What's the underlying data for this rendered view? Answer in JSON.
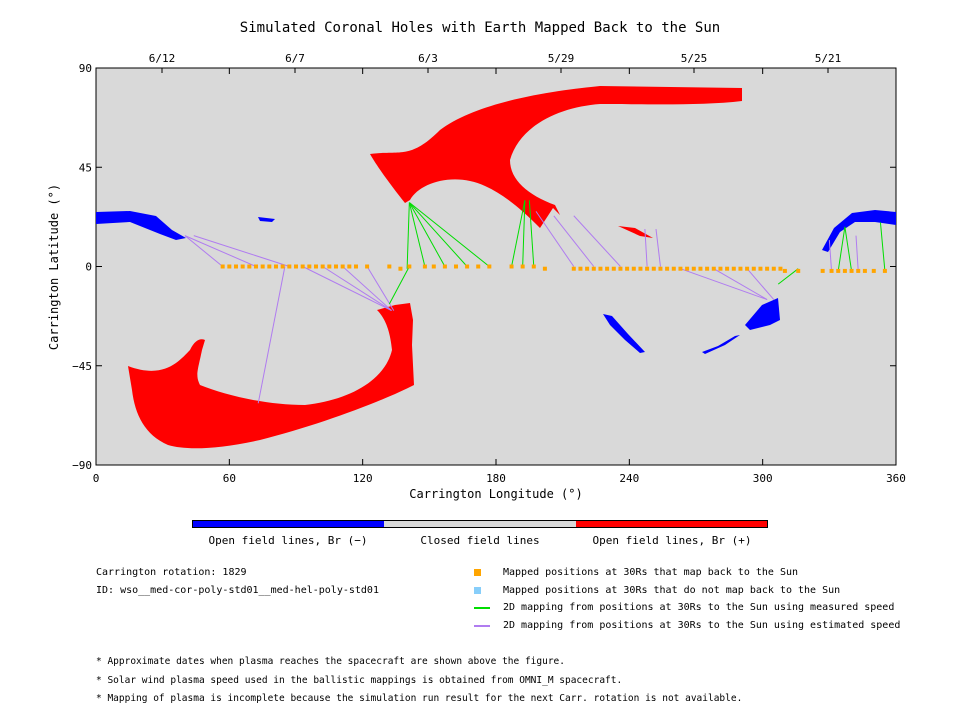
{
  "title": "Simulated Coronal Holes with Earth Mapped Back to the Sun",
  "chart_data": {
    "type": "scatter",
    "xlabel": "Carrington Longitude (°)",
    "ylabel": "Carrington Latitude (°)",
    "xlim": [
      0,
      360
    ],
    "ylim": [
      -90,
      90
    ],
    "x_ticks": [
      "0",
      "60",
      "120",
      "180",
      "240",
      "300",
      "360"
    ],
    "y_ticks": [
      "90",
      "45",
      "0",
      "−45",
      "−90"
    ],
    "top_date_ticks": [
      {
        "label": "6/12",
        "x": 24
      },
      {
        "label": "6/7",
        "x": 90
      },
      {
        "label": "6/3",
        "x": 150
      },
      {
        "label": "5/29",
        "x": 210
      },
      {
        "label": "5/25",
        "x": 270
      },
      {
        "label": "5/21",
        "x": 330
      }
    ],
    "mapped_points_lon": [
      57,
      60,
      63,
      66,
      69,
      72,
      75,
      78,
      81,
      84,
      87,
      90,
      93,
      96,
      99,
      102,
      105,
      108,
      111,
      114,
      117,
      122,
      132,
      137,
      141,
      148,
      152,
      157,
      162,
      167,
      172,
      177,
      187,
      192,
      197,
      202,
      215,
      218,
      221,
      224,
      227,
      230,
      233,
      236,
      239,
      242,
      245,
      248,
      251,
      254,
      257,
      260,
      263,
      266,
      269,
      272,
      275,
      278,
      281,
      284,
      287,
      290,
      293,
      296,
      299,
      302,
      305,
      308,
      310,
      316,
      327,
      331,
      334,
      337,
      340,
      343,
      346,
      350,
      355
    ],
    "mapped_points_lat": [
      0,
      0,
      0,
      0,
      0,
      0,
      0,
      0,
      0,
      0,
      0,
      0,
      0,
      0,
      0,
      0,
      0,
      0,
      0,
      0,
      0,
      0,
      0,
      -1,
      0,
      0,
      0,
      0,
      0,
      0,
      0,
      0,
      0,
      0,
      0,
      -1,
      -1,
      -1,
      -1,
      -1,
      -1,
      -1,
      -1,
      -1,
      -1,
      -1,
      -1,
      -1,
      -1,
      -1,
      -1,
      -1,
      -1,
      -1,
      -1,
      -1,
      -1,
      -1,
      -1,
      -1,
      -1,
      -1,
      -1,
      -1,
      -1,
      -1,
      -1,
      -1,
      -2,
      -2,
      -2,
      -2,
      -2,
      -2,
      -2,
      -2,
      -2,
      -2,
      -2
    ],
    "measured_speed_links": [
      {
        "from": [
          140,
          -1
        ],
        "to": [
          141,
          29
        ]
      },
      {
        "from": [
          148,
          0
        ],
        "to": [
          141,
          29
        ]
      },
      {
        "from": [
          157,
          0
        ],
        "to": [
          141,
          29
        ]
      },
      {
        "from": [
          167,
          0
        ],
        "to": [
          141,
          29
        ]
      },
      {
        "from": [
          177,
          0
        ],
        "to": [
          141,
          29
        ]
      },
      {
        "from": [
          187,
          0
        ],
        "to": [
          193,
          30
        ]
      },
      {
        "from": [
          192,
          0
        ],
        "to": [
          193,
          30
        ]
      },
      {
        "from": [
          197,
          0
        ],
        "to": [
          195,
          30
        ]
      },
      {
        "from": [
          141,
          0
        ],
        "to": [
          132,
          -17
        ]
      },
      {
        "from": [
          316,
          -1
        ],
        "to": [
          307,
          -8
        ]
      },
      {
        "from": [
          334,
          -2
        ],
        "to": [
          337,
          18
        ]
      },
      {
        "from": [
          340,
          -2
        ],
        "to": [
          337,
          18
        ]
      },
      {
        "from": [
          355,
          -2
        ],
        "to": [
          353,
          20
        ]
      }
    ],
    "estimated_speed_links": [
      {
        "from": [
          57,
          0
        ],
        "to": [
          40,
          14
        ]
      },
      {
        "from": [
          72,
          0
        ],
        "to": [
          40,
          14
        ]
      },
      {
        "from": [
          87,
          0
        ],
        "to": [
          44,
          14
        ]
      },
      {
        "from": [
          85,
          0
        ],
        "to": [
          73,
          -62
        ]
      },
      {
        "from": [
          93,
          0
        ],
        "to": [
          133,
          -20
        ]
      },
      {
        "from": [
          102,
          0
        ],
        "to": [
          133,
          -20
        ]
      },
      {
        "from": [
          111,
          0
        ],
        "to": [
          133,
          -20
        ]
      },
      {
        "from": [
          122,
          0
        ],
        "to": [
          134,
          -20
        ]
      },
      {
        "from": [
          215,
          0
        ],
        "to": [
          198,
          25
        ]
      },
      {
        "from": [
          224,
          0
        ],
        "to": [
          206,
          23
        ]
      },
      {
        "from": [
          236,
          0
        ],
        "to": [
          215,
          23
        ]
      },
      {
        "from": [
          248,
          0
        ],
        "to": [
          247,
          17
        ]
      },
      {
        "from": [
          254,
          0
        ],
        "to": [
          252,
          17
        ]
      },
      {
        "from": [
          263,
          -1
        ],
        "to": [
          302,
          -15
        ]
      },
      {
        "from": [
          278,
          -1
        ],
        "to": [
          302,
          -15
        ]
      },
      {
        "from": [
          293,
          -1
        ],
        "to": [
          305,
          -15
        ]
      },
      {
        "from": [
          331,
          -2
        ],
        "to": [
          330,
          12
        ]
      },
      {
        "from": [
          343,
          -2
        ],
        "to": [
          342,
          14
        ]
      }
    ]
  },
  "colorbar": {
    "colors": [
      "#0000ff",
      "#d9d9d9",
      "#ff0000"
    ],
    "labels": [
      "Open field lines, Br (−)",
      "Closed field lines",
      "Open field lines, Br (+)"
    ]
  },
  "info": {
    "rotation": "Carrington rotation: 1829",
    "id": "ID: wso__med-cor-poly-std01__med-hel-poly-std01"
  },
  "legend": [
    {
      "label": "Mapped positions at 30Rs that map back to the Sun",
      "color": "#ffa500",
      "kind": "square"
    },
    {
      "label": "Mapped positions at 30Rs that do not map back to the Sun",
      "color": "#87cefa",
      "kind": "square"
    },
    {
      "label": "2D mapping from positions at 30Rs to the Sun using measured speed",
      "color": "#00dd00",
      "kind": "line"
    },
    {
      "label": "2D mapping from positions at 30Rs to the Sun using estimated speed",
      "color": "#b07cf0",
      "kind": "line"
    }
  ],
  "notes": [
    "* Approximate dates when plasma reaches the spacecraft are shown above the figure.",
    "* Solar wind plasma speed used in the ballistic mappings is obtained from OMNI_M spacecraft.",
    "* Mapping of plasma is incomplete because the simulation run result for the next Carr. rotation is not available."
  ]
}
